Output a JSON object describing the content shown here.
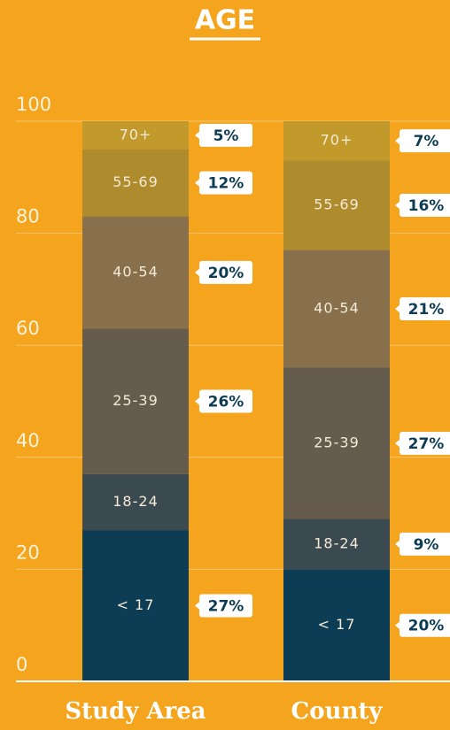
{
  "chart_data": {
    "type": "stacked_bar",
    "title": "AGE",
    "categories": [
      "Study Area",
      "County"
    ],
    "series": [
      {
        "name": "< 17",
        "color": "#0c3d55",
        "values": [
          27,
          20
        ],
        "value_labels": [
          "27%",
          "20%"
        ]
      },
      {
        "name": "18-24",
        "color": "#3b4a50",
        "values": [
          10,
          9
        ],
        "value_labels": [
          null,
          "9%"
        ]
      },
      {
        "name": "25-39",
        "color": "#655c4e",
        "values": [
          26,
          27
        ],
        "value_labels": [
          "26%",
          "27%"
        ]
      },
      {
        "name": "40-54",
        "color": "#87704b",
        "values": [
          20,
          21
        ],
        "value_labels": [
          "20%",
          "21%"
        ]
      },
      {
        "name": "55-69",
        "color": "#ae8b2d",
        "values": [
          12,
          16
        ],
        "value_labels": [
          "12%",
          "16%"
        ]
      },
      {
        "name": "70+",
        "color": "#c29a2b",
        "values": [
          5,
          7
        ],
        "value_labels": [
          "5%",
          "7%"
        ]
      }
    ],
    "ylim": [
      0,
      100
    ],
    "yticks": [
      0,
      20,
      40,
      60,
      80,
      100
    ],
    "grid": true
  }
}
